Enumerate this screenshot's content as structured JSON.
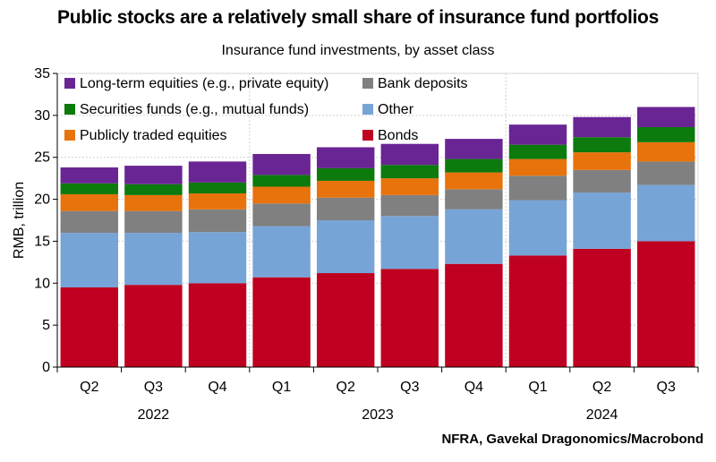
{
  "title": "Public stocks are a relatively small share of insurance fund portfolios",
  "subtitle": "Insurance fund investments, by asset class",
  "source": "NFRA, Gavekal Dragonomics/Macrobond",
  "chart_data": {
    "type": "bar",
    "stacked": true,
    "title": "Public stocks are a relatively small share of insurance fund portfolios",
    "subtitle": "Insurance fund investments, by asset class",
    "ylabel": "RMB, trillion",
    "xlabel": "",
    "ylim": [
      0,
      35
    ],
    "yticks": [
      0,
      5,
      10,
      15,
      20,
      25,
      30,
      35
    ],
    "grid": true,
    "legend_position": "top-left",
    "categories": [
      "Q2",
      "Q3",
      "Q4",
      "Q1",
      "Q2",
      "Q3",
      "Q4",
      "Q1",
      "Q2",
      "Q3"
    ],
    "year_labels": [
      {
        "label": "2022",
        "categories": [
          "Q2",
          "Q3",
          "Q4"
        ]
      },
      {
        "label": "2023",
        "categories": [
          "Q1",
          "Q2",
          "Q3",
          "Q4"
        ]
      },
      {
        "label": "2024",
        "categories": [
          "Q1",
          "Q2",
          "Q3"
        ]
      }
    ],
    "series": [
      {
        "name": "Bonds",
        "color": "#c00020",
        "values": [
          9.5,
          9.8,
          10.0,
          10.7,
          11.2,
          11.7,
          12.3,
          13.3,
          14.1,
          15.0
        ]
      },
      {
        "name": "Other",
        "color": "#77a4d6",
        "values": [
          6.5,
          6.2,
          6.1,
          6.1,
          6.3,
          6.3,
          6.5,
          6.6,
          6.7,
          6.7
        ]
      },
      {
        "name": "Bank deposits",
        "color": "#808080",
        "values": [
          2.6,
          2.6,
          2.7,
          2.7,
          2.7,
          2.5,
          2.4,
          2.9,
          2.7,
          2.8
        ]
      },
      {
        "name": "Publicly traded equities",
        "color": "#e8720c",
        "values": [
          2.0,
          1.9,
          1.9,
          2.0,
          2.0,
          2.0,
          2.0,
          2.0,
          2.1,
          2.3
        ]
      },
      {
        "name": "Securities funds (e.g., mutual funds)",
        "color": "#0c7a0c",
        "values": [
          1.3,
          1.3,
          1.3,
          1.4,
          1.5,
          1.6,
          1.6,
          1.7,
          1.8,
          1.8
        ]
      },
      {
        "name": "Long-term equities (e.g., private equity)",
        "color": "#6a2594",
        "values": [
          1.9,
          2.2,
          2.5,
          2.5,
          2.5,
          2.5,
          2.4,
          2.4,
          2.4,
          2.4
        ]
      }
    ],
    "legend_order": [
      "Long-term equities (e.g., private equity)",
      "Bank deposits",
      "Securities funds (e.g., mutual funds)",
      "Other",
      "Publicly traded equities",
      "Bonds"
    ]
  }
}
